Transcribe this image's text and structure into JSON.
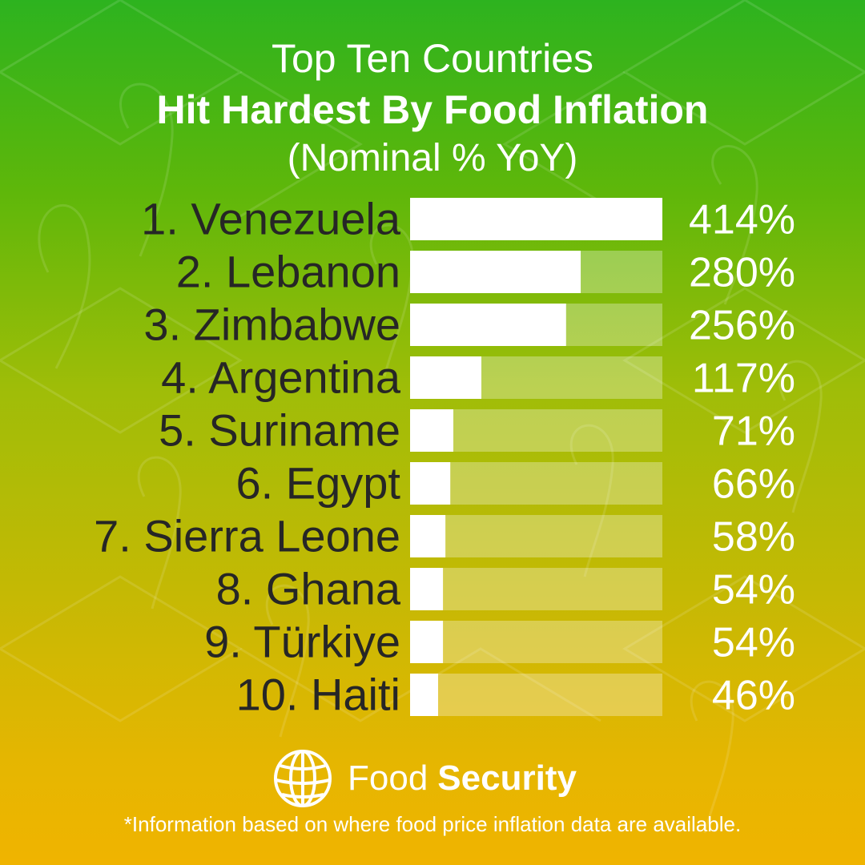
{
  "header": {
    "title_line1": "Top Ten Countries",
    "title_line2": "Hit Hardest By Food Inflation",
    "title_line3": "(Nominal % YoY)"
  },
  "chart_data": {
    "type": "bar",
    "orientation": "horizontal",
    "title": "Top Ten Countries Hit Hardest By Food Inflation (Nominal % YoY)",
    "categories": [
      "1. Venezuela",
      "2. Lebanon",
      "3. Zimbabwe",
      "4. Argentina",
      "5. Suriname",
      "6. Egypt",
      "7. Sierra Leone",
      "8. Ghana",
      "9. Türkiye",
      "10. Haiti"
    ],
    "values": [
      414,
      280,
      256,
      117,
      71,
      66,
      58,
      54,
      54,
      46
    ],
    "value_labels": [
      "414%",
      "280%",
      "256%",
      "117%",
      "71%",
      "66%",
      "58%",
      "54%",
      "54%",
      "46%"
    ],
    "xlim": [
      0,
      414
    ],
    "grid": false,
    "legend": "none",
    "colors": {
      "bar": "#ffffff",
      "track": "#ffffff",
      "label": "#262626",
      "value": "#ffffff"
    }
  },
  "brand": {
    "name_light": "Food",
    "name_bold": "Security",
    "icon": "globe-icon"
  },
  "footnote": "*Information based on where food price inflation data are available.",
  "colors": {
    "gradient_top": "#2db31f",
    "gradient_bottom": "#f0b400",
    "text_dark": "#262626",
    "text_light": "#ffffff"
  }
}
